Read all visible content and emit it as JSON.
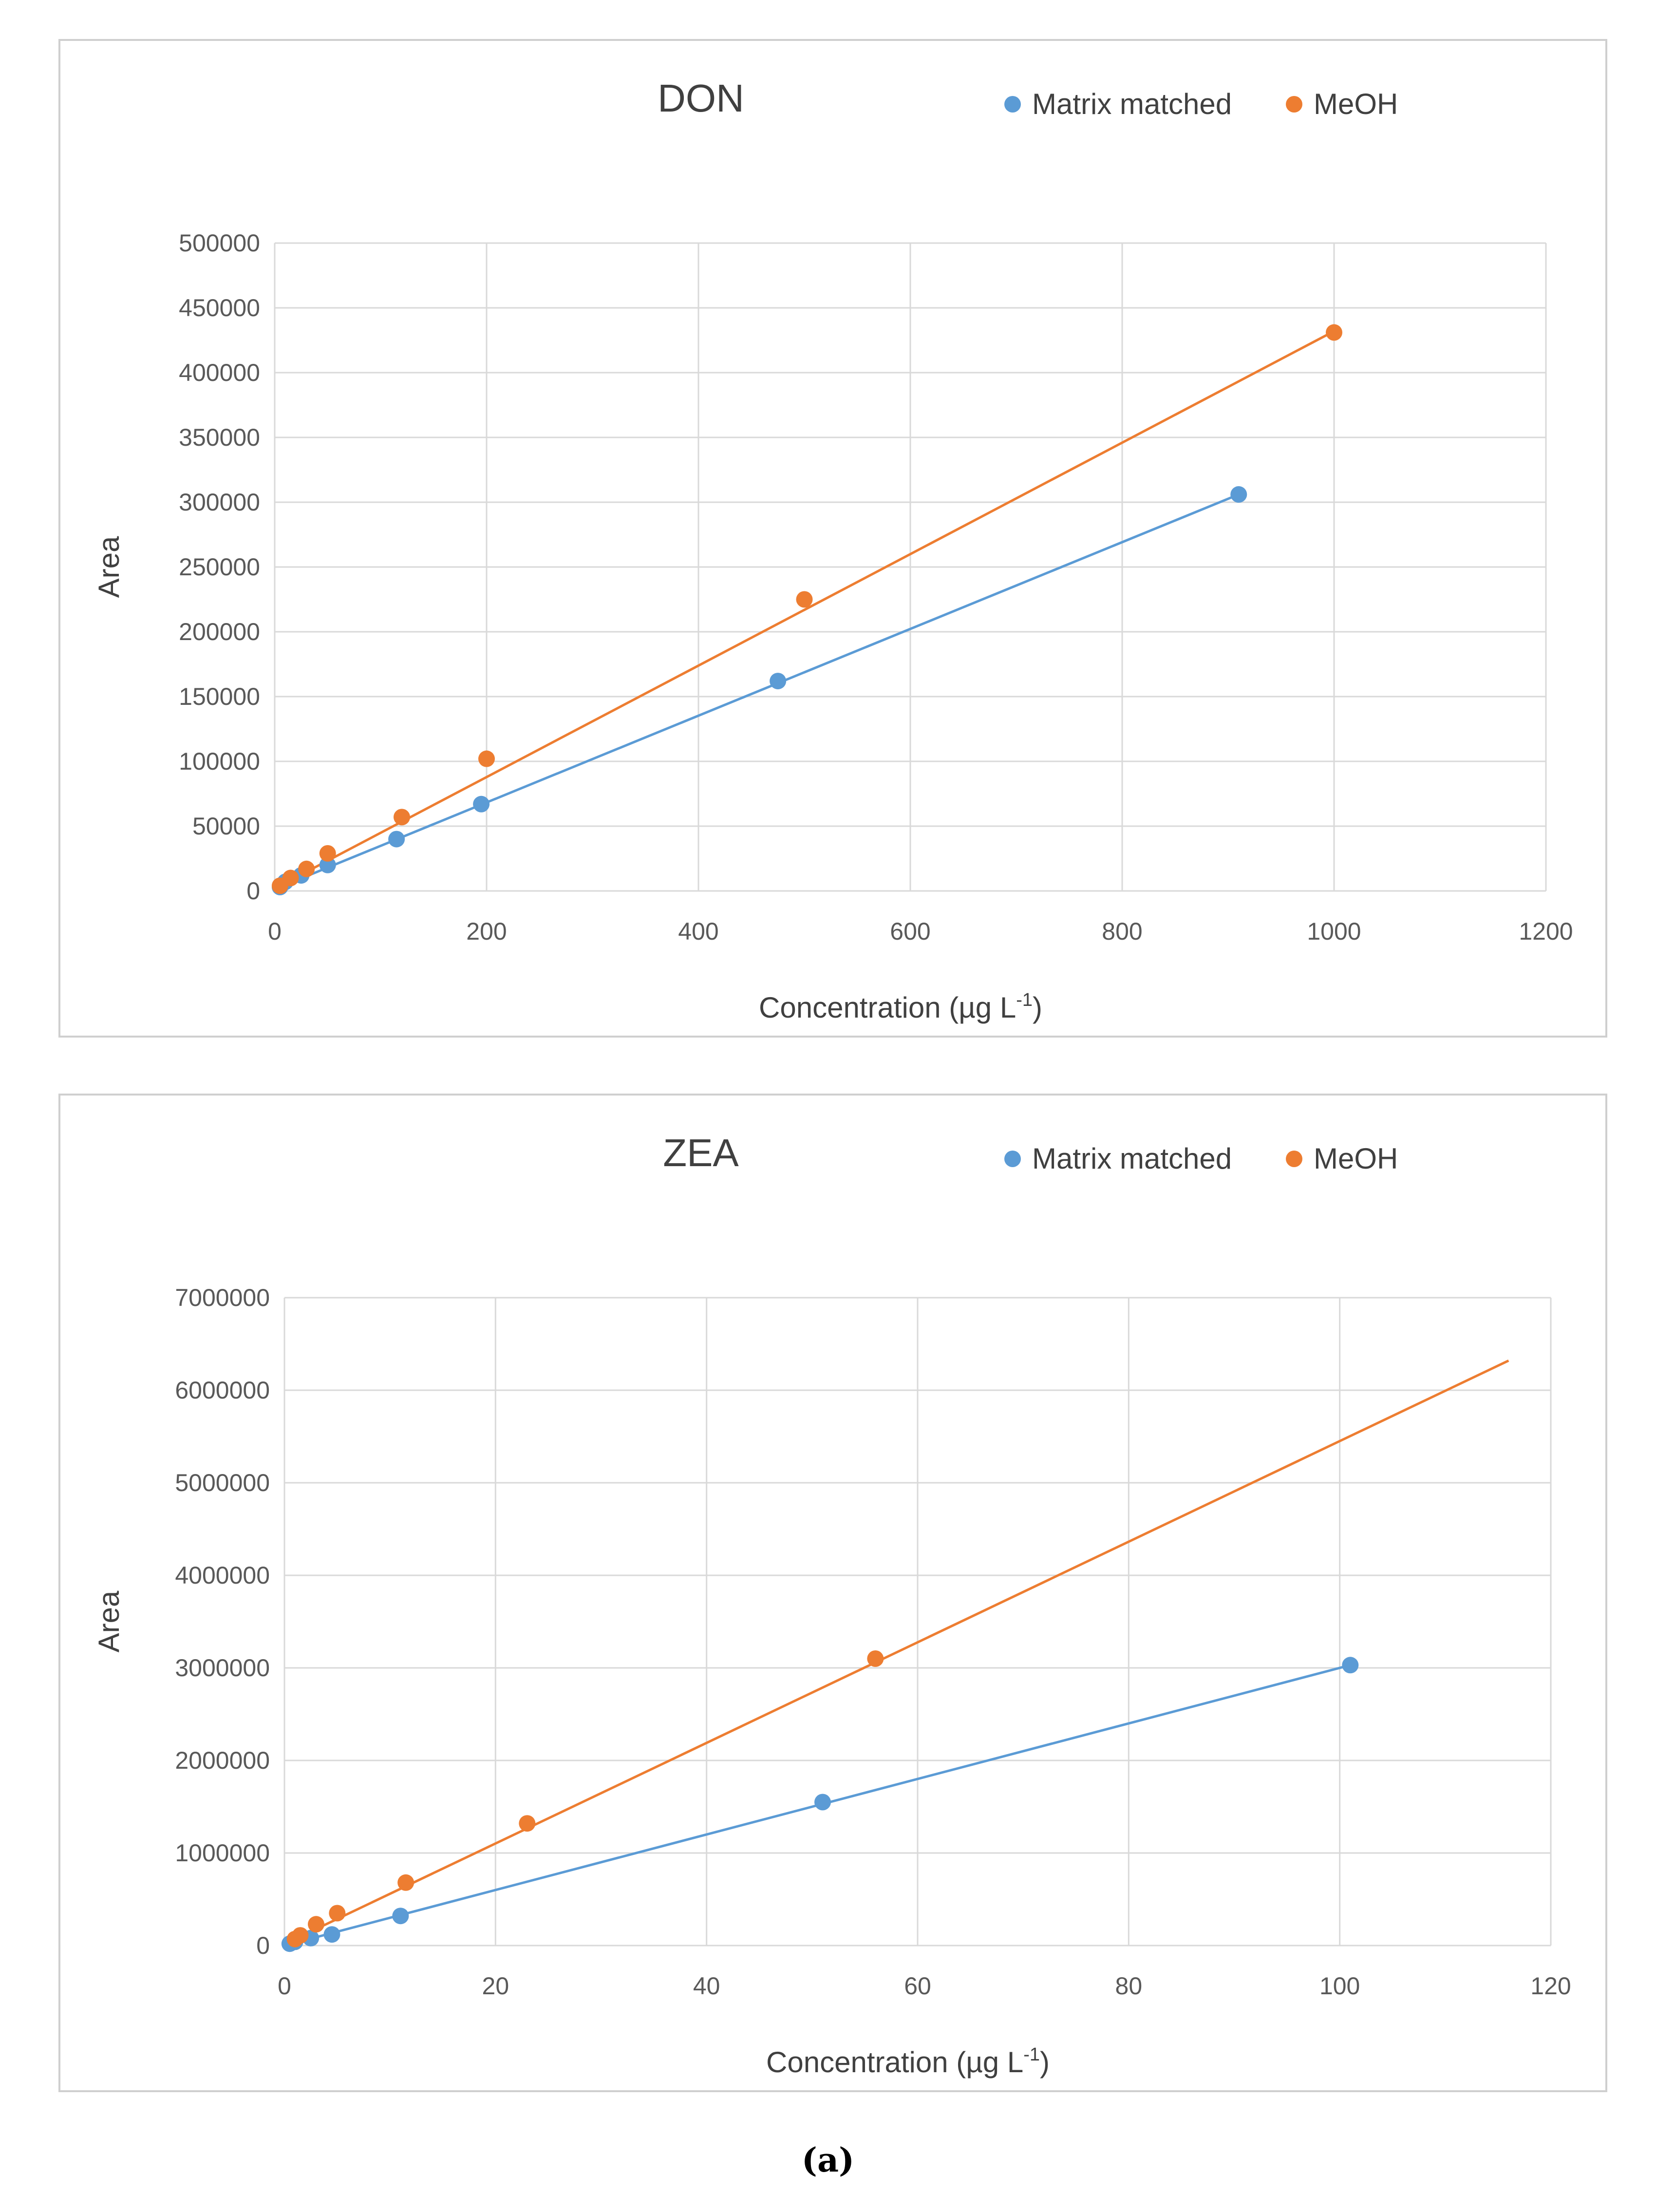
{
  "caption": "(a)",
  "chart_data": [
    {
      "type": "scatter",
      "title": "DON",
      "xlabel": "Concentration (µg L",
      "xlabel_sup": "-1",
      "xlabel_end": ")",
      "ylabel": "Area",
      "xlim": [
        0,
        1200
      ],
      "ylim": [
        0,
        500000
      ],
      "xticks": [
        0,
        200,
        400,
        600,
        800,
        1000,
        1200
      ],
      "yticks": [
        0,
        50000,
        100000,
        150000,
        200000,
        250000,
        300000,
        350000,
        400000,
        450000,
        500000
      ],
      "legend_position": "top-right",
      "series": [
        {
          "name": "Matrix matched",
          "color": "#5b9bd5",
          "x": [
            5,
            10,
            25,
            50,
            115,
            195,
            475,
            910
          ],
          "y": [
            3000,
            7000,
            12000,
            20000,
            40000,
            67000,
            162000,
            306000
          ],
          "trend_line": [
            [
              5,
              3000
            ],
            [
              910,
              306000
            ]
          ]
        },
        {
          "name": "MeOH",
          "color": "#ed7d31",
          "x": [
            5,
            15,
            30,
            50,
            120,
            200,
            500,
            1000
          ],
          "y": [
            4000,
            10000,
            17000,
            29000,
            57000,
            102000,
            225000,
            431000
          ],
          "trend_line": [
            [
              5,
              4000
            ],
            [
              1000,
              432000
            ]
          ]
        }
      ]
    },
    {
      "type": "scatter",
      "title": "ZEA",
      "xlabel": "Concentration (µg L",
      "xlabel_sup": "-1",
      "xlabel_end": ")",
      "ylabel": "Area",
      "xlim": [
        0,
        120
      ],
      "ylim": [
        0,
        7000000
      ],
      "xticks": [
        0,
        20,
        40,
        60,
        80,
        100,
        120
      ],
      "yticks": [
        0,
        1000000,
        2000000,
        3000000,
        4000000,
        5000000,
        6000000,
        7000000
      ],
      "legend_position": "top-right",
      "series": [
        {
          "name": "Matrix matched",
          "color": "#5b9bd5",
          "x": [
            0.5,
            1,
            2.5,
            4.5,
            11,
            51,
            101
          ],
          "y": [
            20000,
            40000,
            80000,
            120000,
            320000,
            1550000,
            3030000
          ],
          "trend_line": [
            [
              0.5,
              15000
            ],
            [
              101,
              3030000
            ]
          ]
        },
        {
          "name": "MeOH",
          "color": "#ed7d31",
          "x": [
            1,
            1.5,
            3,
            5,
            11.5,
            23,
            56
          ],
          "y": [
            70000,
            110000,
            230000,
            350000,
            680000,
            1320000,
            3100000
          ],
          "trend_line": [
            [
              1,
              70000
            ],
            [
              116,
              6320000
            ]
          ]
        }
      ]
    }
  ]
}
